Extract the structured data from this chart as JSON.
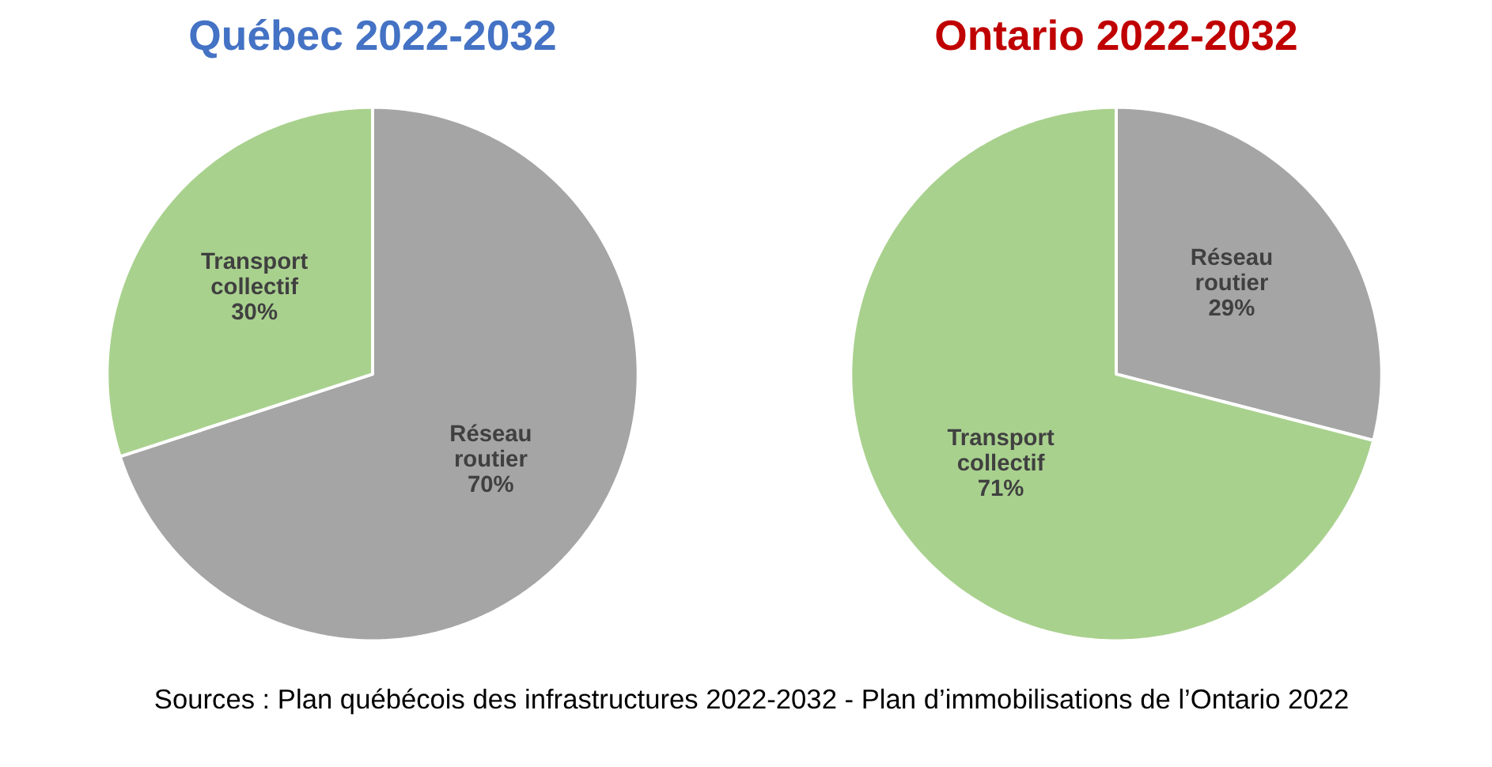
{
  "chart_data": [
    {
      "type": "pie",
      "title": "Québec 2022-2032",
      "categories": [
        "Réseau routier",
        "Transport collectif"
      ],
      "values": [
        70,
        30
      ],
      "colors": [
        "#a5a5a5",
        "#a9d18e"
      ],
      "value_labels": [
        "70%",
        "30%"
      ]
    },
    {
      "type": "pie",
      "title": "Ontario 2022-2032",
      "categories": [
        "Réseau routier",
        "Transport collectif"
      ],
      "values": [
        29,
        71
      ],
      "colors": [
        "#a5a5a5",
        "#a9d18e"
      ],
      "value_labels": [
        "29%",
        "71%"
      ],
      "annotations": [
        "Sources : Plan québécois des infrastructures 2022-2032 - Plan d’immobilisations de l’Ontario 2022"
      ]
    }
  ]
}
